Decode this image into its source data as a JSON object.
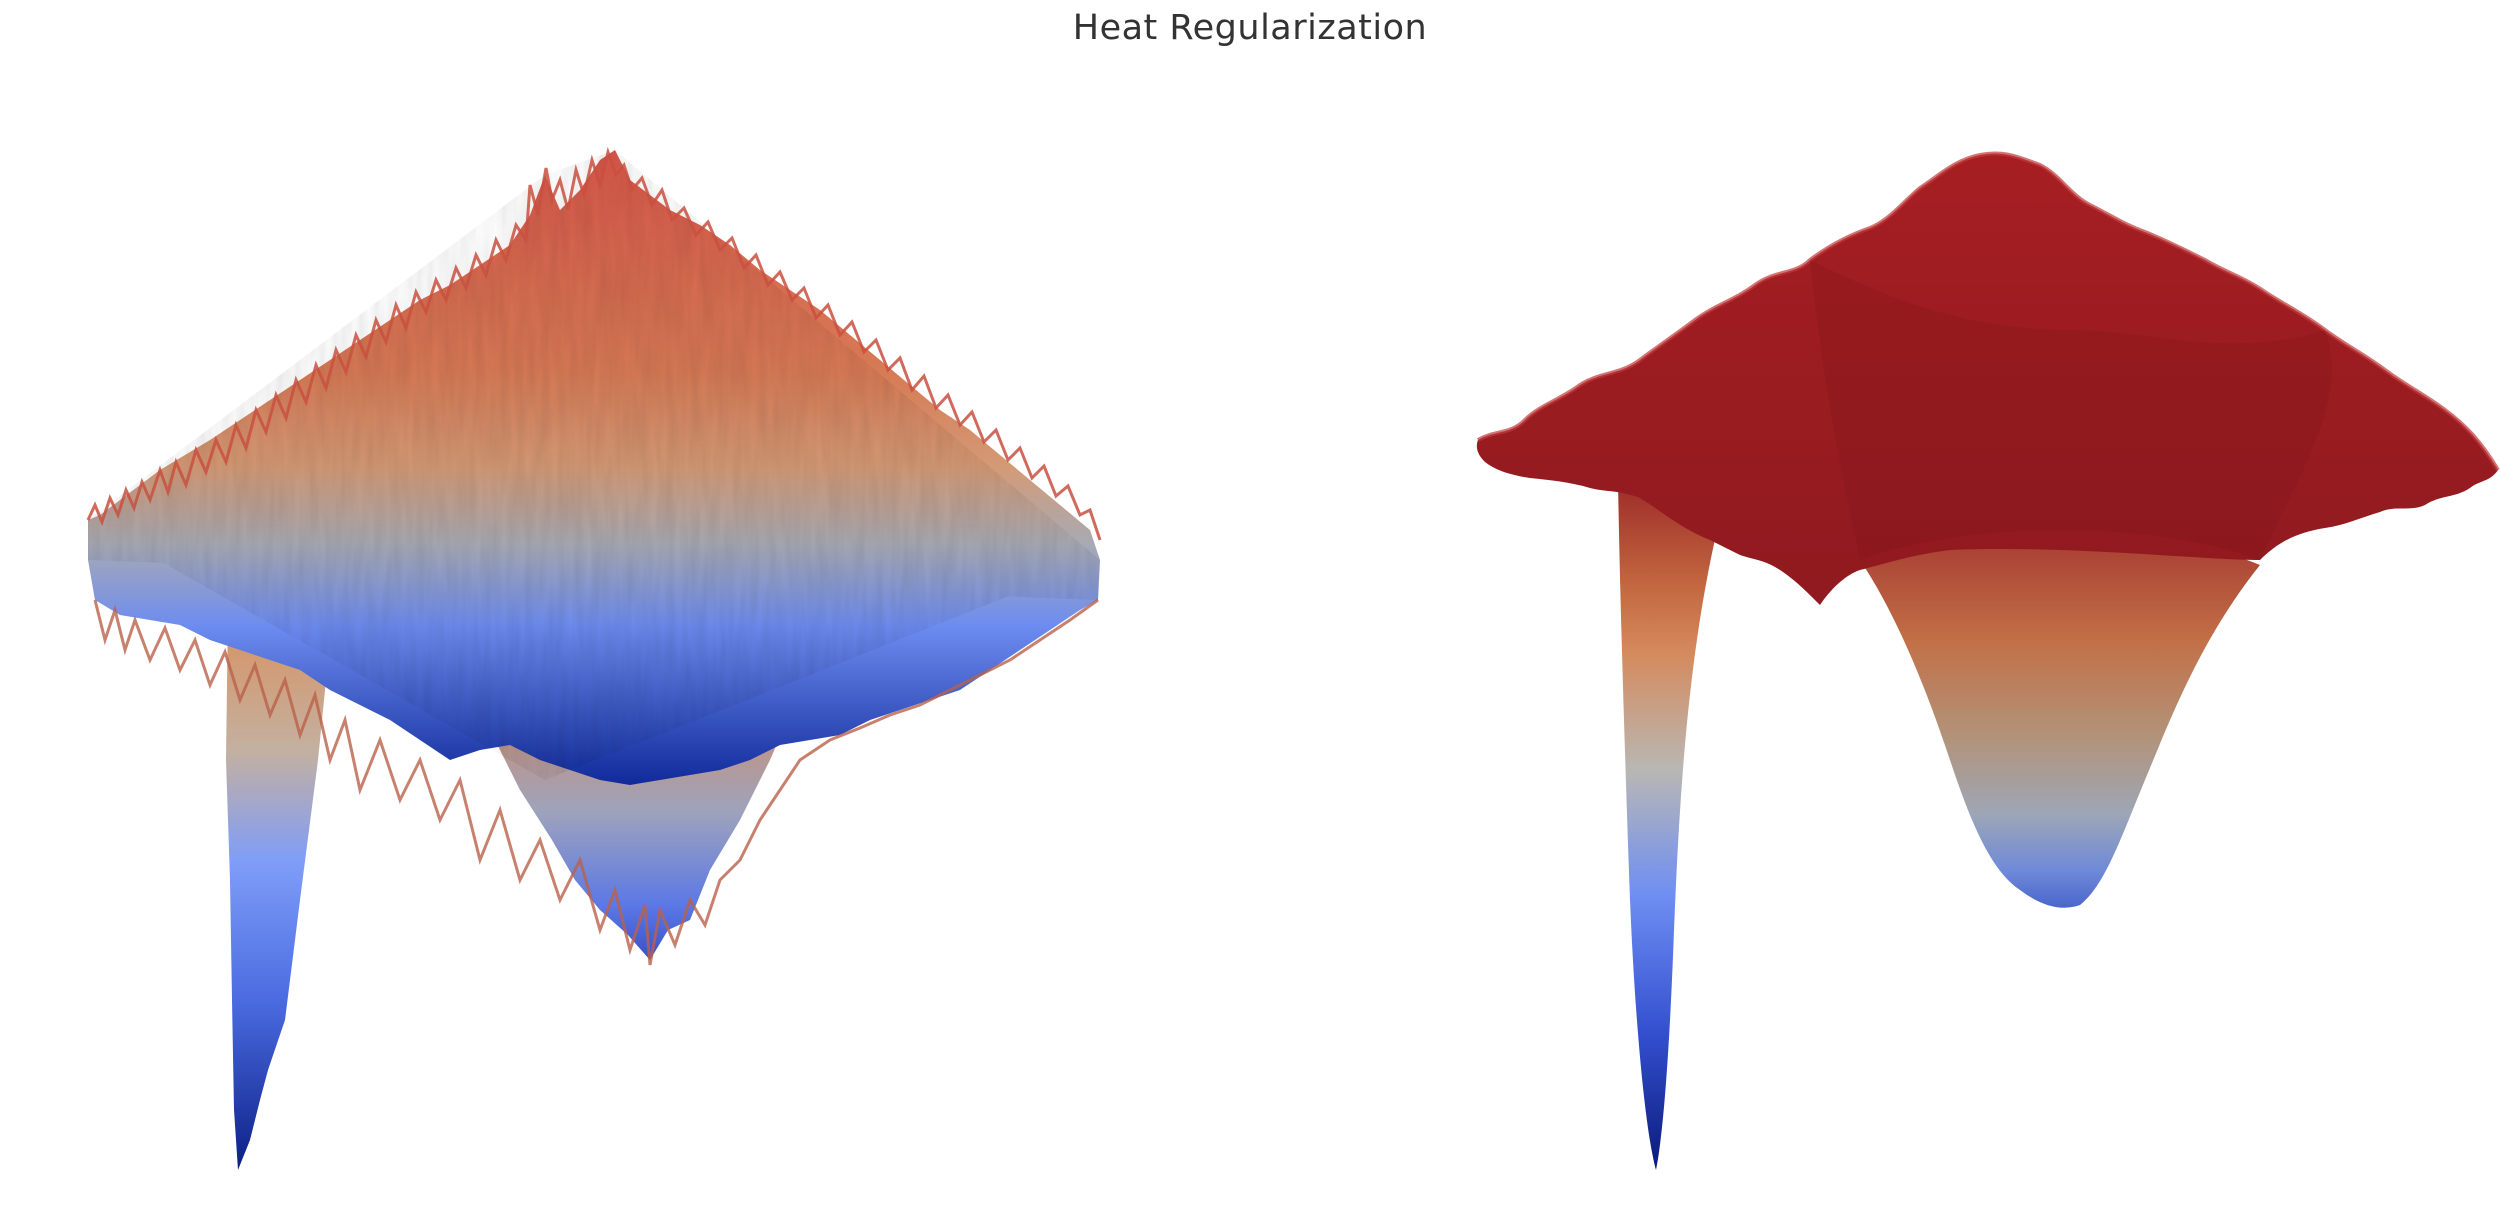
{
  "figure": {
    "title": "Heat Regularization"
  },
  "colormap": {
    "name": "coolwarm",
    "stops": [
      "#3b4cc0",
      "#6788ee",
      "#9abbff",
      "#c9d7f0",
      "#edd1c2",
      "#f7a889",
      "#e26952",
      "#b40426"
    ]
  },
  "panels": [
    {
      "id": "noisy-surface",
      "surface": "noisy",
      "description_visible": false
    },
    {
      "id": "smoothed-surface",
      "surface": "smooth",
      "description_visible": false
    }
  ]
}
